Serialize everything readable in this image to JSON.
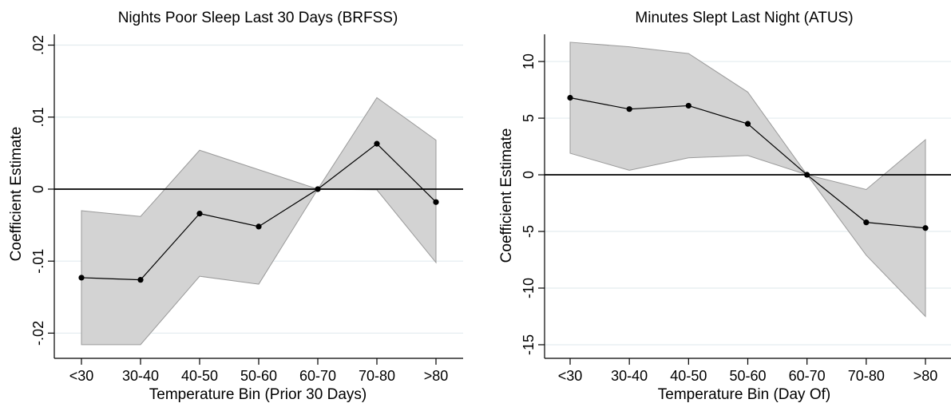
{
  "chart_data": [
    {
      "type": "line",
      "title": "Nights Poor Sleep Last 30 Days (BRFSS)",
      "xlabel": "Temperature Bin (Prior 30 Days)",
      "ylabel": "Coefficient Estimate",
      "categories": [
        "<30",
        "30-40",
        "40-50",
        "50-60",
        "60-70",
        "70-80",
        ">80"
      ],
      "y_ticks": [
        -0.02,
        -0.01,
        0,
        0.01,
        0.02
      ],
      "y_tick_labels": [
        "-.02",
        "-.01",
        "0",
        ".01",
        ".02"
      ],
      "ylim": [
        -0.0235,
        0.0215
      ],
      "series": [
        {
          "values": [
            -0.0123,
            -0.0126,
            -0.0034,
            -0.0052,
            0.0,
            0.0063,
            -0.0018
          ]
        }
      ],
      "ci_lower": [
        -0.0216,
        -0.0216,
        -0.0121,
        -0.0132,
        0.0,
        -0.0001,
        -0.0102
      ],
      "ci_upper": [
        -0.003,
        -0.0038,
        0.0054,
        0.0027,
        0.0,
        0.0127,
        0.0068
      ],
      "grid": true,
      "zero_line": true,
      "colors": {
        "line": "#000000",
        "band": "#d3d3d3",
        "band_edge": "#9a9a9a",
        "grid": "#e3ecef"
      }
    },
    {
      "type": "line",
      "title": "Minutes Slept Last Night (ATUS)",
      "xlabel": "Temperature Bin (Day Of)",
      "ylabel": "Coefficient Estimate",
      "categories": [
        "<30",
        "30-40",
        "40-50",
        "50-60",
        "60-70",
        "70-80",
        ">80"
      ],
      "y_ticks": [
        -15,
        -10,
        -5,
        0,
        5,
        10
      ],
      "y_tick_labels": [
        "-15",
        "-10",
        "-5",
        "0",
        "5",
        "10"
      ],
      "ylim": [
        -16.2,
        12.4
      ],
      "series": [
        {
          "values": [
            6.8,
            5.8,
            6.1,
            4.5,
            0.0,
            -4.2,
            -4.7
          ]
        }
      ],
      "ci_lower": [
        1.9,
        0.4,
        1.5,
        1.7,
        0.0,
        -7.1,
        -12.5
      ],
      "ci_upper": [
        11.7,
        11.3,
        10.7,
        7.3,
        0.0,
        -1.3,
        3.1
      ],
      "grid": true,
      "zero_line": true,
      "colors": {
        "line": "#000000",
        "band": "#d3d3d3",
        "band_edge": "#9a9a9a",
        "grid": "#e3ecef"
      }
    }
  ]
}
